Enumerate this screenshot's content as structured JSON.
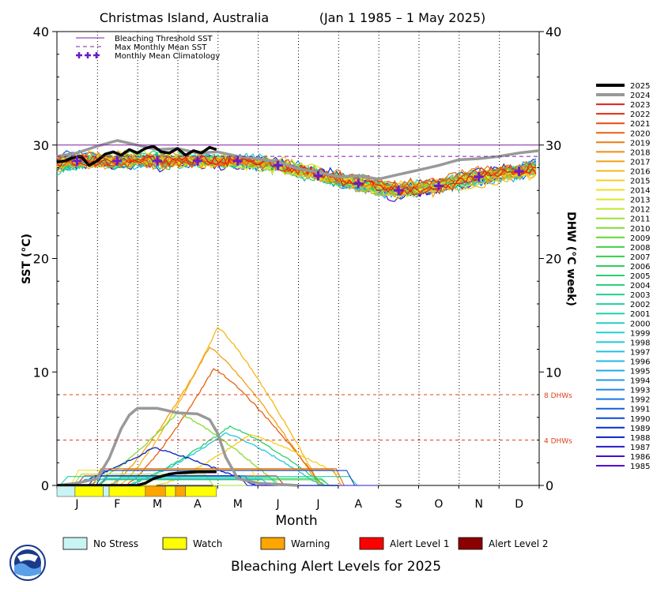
{
  "chart_data": {
    "type": "line",
    "title": "Christmas Island, Australia",
    "date_range": "(Jan 1 1985 – 1 May 2025)",
    "xlabel": "Month",
    "ylabel_left": "SST (°C)",
    "ylabel_right": "DHW (°C week)",
    "ylim": [
      0,
      40
    ],
    "yticks": [
      0,
      10,
      20,
      30,
      40
    ],
    "months": [
      "J",
      "F",
      "M",
      "A",
      "M",
      "J",
      "J",
      "A",
      "S",
      "O",
      "N",
      "D"
    ],
    "grid": "dotted vertical lines at month boundaries",
    "legend_position": "top-left (thresholds), right (years)",
    "thresholds": {
      "bleaching_threshold_sst": 30.0,
      "max_monthly_mean_sst": 29.0,
      "dhw_4_label": "4 DHWs",
      "dhw_8_label": "8 DHWs",
      "dhw_4": 4,
      "dhw_8": 8
    },
    "threshold_legend": [
      {
        "label": "Bleaching Threshold SST",
        "style": "solid",
        "color": "#7b1fa2"
      },
      {
        "label": "Max Monthly Mean SST",
        "style": "dashed",
        "color": "#7b1fa2"
      },
      {
        "label": "Monthly Mean Climatology",
        "style": "plus",
        "color": "#6a1bcc"
      }
    ],
    "monthly_mean_climatology": {
      "x": [
        0.5,
        1.5,
        2.5,
        3.5,
        4.5,
        5.5,
        6.5,
        7.5,
        8.5,
        9.5,
        10.5,
        11.5
      ],
      "y": [
        28.6,
        28.6,
        28.6,
        28.6,
        28.6,
        28.2,
        27.3,
        26.6,
        26.0,
        26.4,
        27.2,
        27.7
      ]
    },
    "sst_2025": {
      "x": [
        0,
        0.2,
        0.4,
        0.6,
        0.8,
        1.0,
        1.2,
        1.4,
        1.6,
        1.8,
        2.0,
        2.2,
        2.4,
        2.6,
        2.8,
        3.0,
        3.2,
        3.4,
        3.6,
        3.8,
        3.97
      ],
      "y": [
        28.5,
        28.6,
        28.9,
        29.0,
        28.2,
        28.6,
        29.2,
        29.4,
        29.1,
        29.6,
        29.3,
        29.7,
        29.9,
        29.4,
        29.3,
        29.7,
        29.1,
        29.5,
        29.3,
        29.8,
        29.6
      ]
    },
    "sst_2024": {
      "x": [
        0,
        0.5,
        1.0,
        1.5,
        2.0,
        2.5,
        3.0,
        3.5,
        4.0,
        4.5,
        5.0,
        5.5,
        6.0,
        6.5,
        7.0,
        7.5,
        8.0,
        8.5,
        9.0,
        9.5,
        10.0,
        10.5,
        11.0,
        11.5,
        12.0
      ],
      "y": [
        29.0,
        29.3,
        29.9,
        30.4,
        30.0,
        29.6,
        29.7,
        29.3,
        29.4,
        29.0,
        28.8,
        28.5,
        27.9,
        27.6,
        27.2,
        27.3,
        27.0,
        27.4,
        27.8,
        28.2,
        28.7,
        28.8,
        29.0,
        29.3,
        29.5
      ]
    },
    "dhw_2024": {
      "x": [
        0,
        0.5,
        1.0,
        1.3,
        1.6,
        1.8,
        2.0,
        2.5,
        3.0,
        3.5,
        3.8,
        4.0,
        4.2,
        4.5,
        5.0,
        5.5,
        6.0
      ],
      "y": [
        0,
        0.2,
        0.6,
        2.4,
        5.0,
        6.2,
        6.8,
        6.8,
        6.4,
        6.3,
        5.8,
        4.6,
        2.5,
        0.6,
        0.2,
        0.1,
        0
      ]
    },
    "dhw_2025": {
      "x": [
        0,
        1.5,
        2.0,
        2.2,
        2.4,
        2.6,
        2.8,
        3.0,
        3.5,
        3.97
      ],
      "y": [
        0,
        0,
        0,
        0.2,
        0.6,
        0.8,
        1.0,
        1.1,
        1.2,
        1.2
      ]
    },
    "dhw_peak_other_years": [
      {
        "year": "2016",
        "peak": 13.9,
        "peak_month": 4.0
      },
      {
        "year": "2017",
        "peak": 12.2,
        "peak_month": 3.8
      },
      {
        "year": "2020",
        "peak": 10.3,
        "peak_month": 3.9
      },
      {
        "year": "2010",
        "peak": 6.4,
        "peak_month": 3.0
      },
      {
        "year": "2005",
        "peak": 5.2,
        "peak_month": 4.3
      },
      {
        "year": "1998",
        "peak": 4.6,
        "peak_month": 4.2
      },
      {
        "year": "2015",
        "peak": 4.5,
        "peak_month": 4.8
      },
      {
        "year": "1988",
        "peak": 3.3,
        "peak_month": 2.4
      }
    ],
    "years": [
      "2025",
      "2024",
      "2023",
      "2022",
      "2021",
      "2020",
      "2019",
      "2018",
      "2017",
      "2016",
      "2015",
      "2014",
      "2013",
      "2012",
      "2011",
      "2010",
      "2009",
      "2008",
      "2007",
      "2006",
      "2005",
      "2004",
      "2003",
      "2002",
      "2001",
      "2000",
      "1999",
      "1998",
      "1997",
      "1996",
      "1995",
      "1994",
      "1993",
      "1992",
      "1991",
      "1990",
      "1989",
      "1988",
      "1987",
      "1986",
      "1985"
    ],
    "year_colors": [
      "#000000",
      "#999999",
      "#e0201a",
      "#e02c10",
      "#e64a10",
      "#ea6010",
      "#ee7a10",
      "#f08c10",
      "#f4a010",
      "#f6b814",
      "#f4d020",
      "#f0e020",
      "#e0e828",
      "#c0e82c",
      "#a0e030",
      "#84dc30",
      "#5cd830",
      "#40d040",
      "#30cc50",
      "#30cc60",
      "#28d070",
      "#28d080",
      "#20d090",
      "#20d0a0",
      "#20d0b0",
      "#20d0c0",
      "#20d0d0",
      "#20c8dc",
      "#20c0e0",
      "#20b8e8",
      "#20a8e8",
      "#2098e8",
      "#2088e0",
      "#1878e0",
      "#1060d8",
      "#0848d8",
      "#0030d0",
      "#0820c8",
      "#2818c8",
      "#4010c8",
      "#5008d0"
    ],
    "bleaching_alert": {
      "title": "Bleaching Alert Levels for 2025",
      "bar_segments": [
        {
          "from": 0,
          "to": 0.45,
          "level": "No Stress"
        },
        {
          "from": 0.45,
          "to": 1.15,
          "level": "Watch"
        },
        {
          "from": 1.15,
          "to": 1.3,
          "level": "No Stress"
        },
        {
          "from": 1.3,
          "to": 2.2,
          "level": "Watch"
        },
        {
          "from": 2.2,
          "to": 2.7,
          "level": "Warning"
        },
        {
          "from": 2.7,
          "to": 2.95,
          "level": "Watch"
        },
        {
          "from": 2.95,
          "to": 3.2,
          "level": "Warning"
        },
        {
          "from": 3.2,
          "to": 3.97,
          "level": "Watch"
        }
      ],
      "levels": [
        {
          "label": "No Stress",
          "color": "#c8f4f4"
        },
        {
          "label": "Watch",
          "color": "#ffff00"
        },
        {
          "label": "Warning",
          "color": "#ffa500"
        },
        {
          "label": "Alert Level 1",
          "color": "#ff0000"
        },
        {
          "label": "Alert Level 2",
          "color": "#8b0000"
        }
      ]
    }
  }
}
